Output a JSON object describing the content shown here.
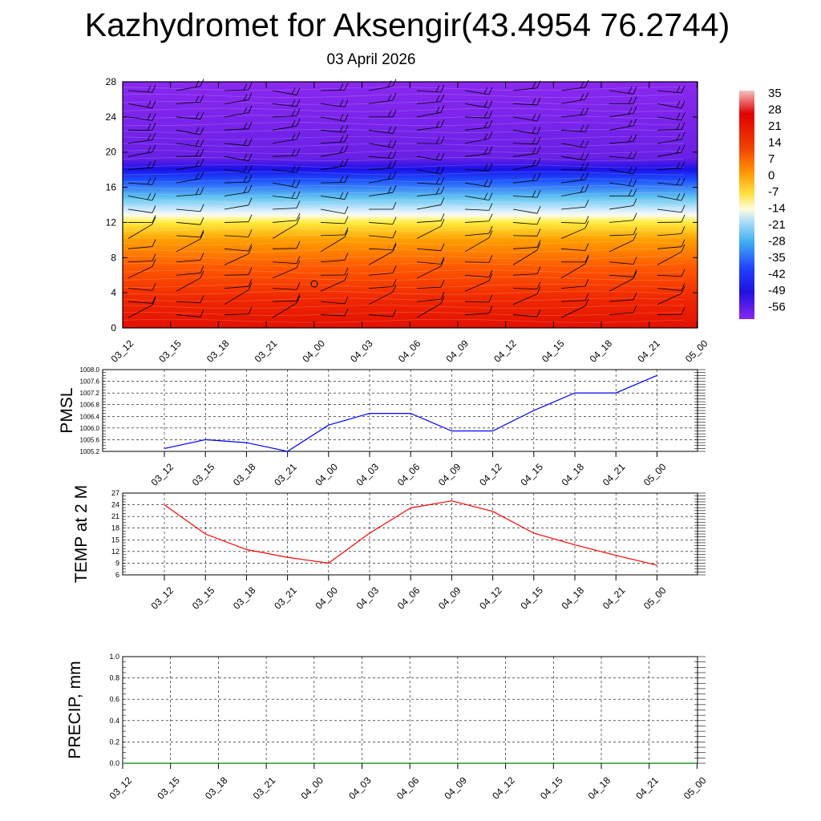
{
  "title": "Kazhydromet for Aksengir(43.4954 76.2744)",
  "subtitle": "03 April 2026",
  "time_labels": [
    "03_12",
    "03_15",
    "03_18",
    "03_21",
    "04_00",
    "04_03",
    "04_06",
    "04_09",
    "04_12",
    "04_15",
    "04_18",
    "04_21",
    "05_00"
  ],
  "colorbar": {
    "labels": [
      "35",
      "28",
      "21",
      "14",
      "7",
      "0",
      "-7",
      "-14",
      "-21",
      "-28",
      "-35",
      "-42",
      "-49",
      "-56"
    ],
    "stops": [
      "#f0b0b0",
      "#e00000",
      "#f04000",
      "#ff8000",
      "#ffd000",
      "#fff8b0",
      "#e8f4ff",
      "#60c0f0",
      "#2060ff",
      "#2020f0",
      "#6020e0",
      "#8020e0"
    ]
  },
  "chart_data": [
    {
      "type": "heatmap",
      "name": "temperature-wind-cross-section",
      "title": "Kazhydromet for Aksengir(43.4954 76.2744)",
      "subtitle": "03 April 2026",
      "ylim": [
        0,
        28
      ],
      "yticks": [
        0,
        4,
        8,
        12,
        16,
        20,
        24,
        28
      ],
      "x": [
        "03_12",
        "03_15",
        "03_18",
        "03_21",
        "04_00",
        "04_03",
        "04_06",
        "04_09",
        "04_12",
        "04_15",
        "04_18",
        "04_21",
        "05_00"
      ],
      "color_scale": [
        35,
        28,
        21,
        14,
        7,
        0,
        -7,
        -14,
        -21,
        -28,
        -35,
        -42,
        -49,
        -56
      ],
      "bands": [
        {
          "from": 0,
          "to": 4,
          "value": 21
        },
        {
          "from": 4,
          "to": 8,
          "value": 10
        },
        {
          "from": 8,
          "to": 12.5,
          "value": 2
        },
        {
          "from": 12.5,
          "to": 16,
          "value": -20
        },
        {
          "from": 16,
          "to": 19,
          "value": -52
        },
        {
          "from": 19,
          "to": 28,
          "value": -58
        }
      ]
    },
    {
      "type": "line",
      "name": "pmsl",
      "ylabel": "PMSL",
      "x": [
        "03_12",
        "03_15",
        "03_18",
        "03_21",
        "04_00",
        "04_03",
        "04_06",
        "04_09",
        "04_12",
        "04_15",
        "04_18",
        "04_21",
        "05_00"
      ],
      "values": [
        1005.3,
        1005.6,
        1005.5,
        1005.2,
        1006.1,
        1006.5,
        1006.5,
        1005.9,
        1005.9,
        1006.6,
        1007.2,
        1007.2,
        1007.8
      ],
      "ylim": [
        1005.2,
        1008.0
      ],
      "yticks": [
        "1005.2",
        "1005.6",
        "1006.0",
        "1006.4",
        "1006.8",
        "1007.2",
        "1007.6",
        "1008.0"
      ],
      "color": "#0000ff"
    },
    {
      "type": "line",
      "name": "temp-2m",
      "ylabel": "TEMP at 2 M",
      "x": [
        "03_12",
        "03_15",
        "03_18",
        "03_21",
        "04_00",
        "04_03",
        "04_06",
        "04_09",
        "04_12",
        "04_15",
        "04_18",
        "04_21",
        "05_00"
      ],
      "values": [
        24,
        16.5,
        12.5,
        10.5,
        9,
        16.7,
        23.2,
        25,
        22.3,
        16.7,
        13.7,
        11,
        8.5
      ],
      "ylim": [
        6,
        27
      ],
      "yticks": [
        "6",
        "9",
        "12",
        "15",
        "18",
        "21",
        "24",
        "27"
      ],
      "color": "#ff0000"
    },
    {
      "type": "line",
      "name": "precip",
      "ylabel": "PRECIP, mm",
      "x": [
        "03_12",
        "03_15",
        "03_18",
        "03_21",
        "04_00",
        "04_03",
        "04_06",
        "04_09",
        "04_12",
        "04_15",
        "04_18",
        "04_21",
        "05_00"
      ],
      "values": [
        0,
        0,
        0,
        0,
        0,
        0,
        0,
        0,
        0,
        0,
        0,
        0,
        0
      ],
      "ylim": [
        0,
        1.0
      ],
      "yticks": [
        "0.0",
        "0.2",
        "0.4",
        "0.6",
        "0.8",
        "1.0"
      ],
      "color": "#008000"
    }
  ]
}
